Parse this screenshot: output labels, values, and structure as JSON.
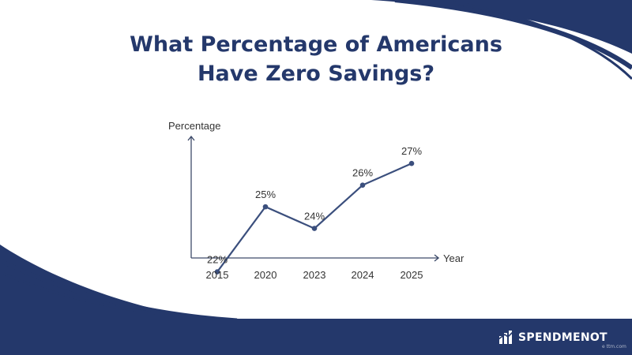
{
  "title": {
    "line1": "What Percentage of Americans",
    "line2": "Have Zero Savings?"
  },
  "brand": {
    "name": "SPENDMENOT",
    "credit": "e ttm.com",
    "icon": "building-logo-icon"
  },
  "colors": {
    "navy": "#24386b",
    "line": "#3b4f7d",
    "axis": "#3e4b6a",
    "text": "#333333"
  },
  "chart_data": {
    "type": "line",
    "title": "What Percentage of Americans Have Zero Savings?",
    "xlabel": "Year",
    "ylabel": "Percentage",
    "categories": [
      "2015",
      "2020",
      "2023",
      "2024",
      "2025"
    ],
    "series": [
      {
        "values": [
          22,
          25,
          24,
          26,
          27
        ],
        "labels": [
          "22%",
          "25%",
          "24%",
          "26%",
          "27%"
        ]
      }
    ],
    "ylim": [
      21,
      28.5
    ],
    "grid": false,
    "legend": "none"
  }
}
